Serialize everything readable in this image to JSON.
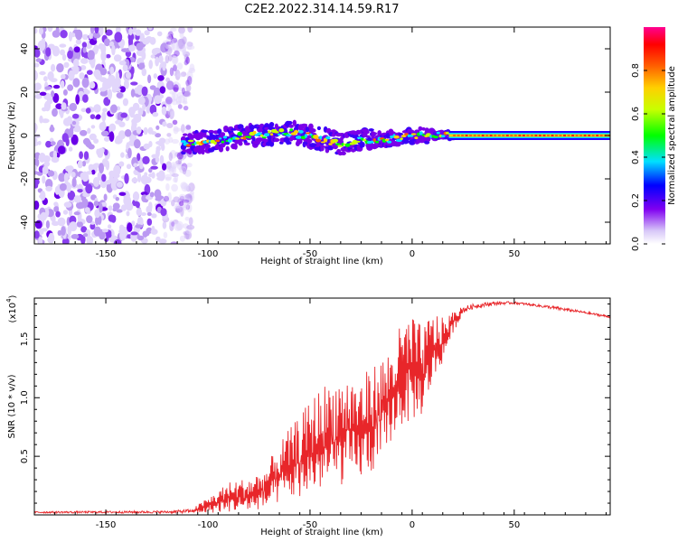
{
  "title": "C2E2.2022.314.14.59.R17",
  "chart_data": [
    {
      "type": "heatmap",
      "name": "spectrogram",
      "xlabel": "Height of straight line (km)",
      "ylabel": "Frequency (Hz)",
      "xlim": [
        -185,
        97
      ],
      "ylim": [
        -50,
        50
      ],
      "xticks": [
        -150,
        -100,
        -50,
        0,
        50
      ],
      "yticks": [
        -40,
        -20,
        0,
        20,
        40
      ],
      "description_regions": {
        "noise_region_x": [
          -185,
          -112
        ],
        "signal_trace": [
          {
            "x": -112,
            "f": -3.5
          },
          {
            "x": -100,
            "f": -2.5
          },
          {
            "x": -80,
            "f": 0.0
          },
          {
            "x": -60,
            "f": 1.5
          },
          {
            "x": -45,
            "f": -1.5
          },
          {
            "x": -35,
            "f": -3.5
          },
          {
            "x": -20,
            "f": -2.0
          },
          {
            "x": -10,
            "f": -1.5
          },
          {
            "x": 0,
            "f": 0.0
          },
          {
            "x": 10,
            "f": 0.0
          },
          {
            "x": 20,
            "f": 0.0
          },
          {
            "x": 97,
            "f": 0.0
          }
        ]
      },
      "colorbar": {
        "label": "Normalized spectral amplitude",
        "range": [
          0.0,
          1.0
        ],
        "ticks": [
          0.0,
          0.2,
          0.4,
          0.6,
          0.8
        ],
        "tick_labels": [
          "0.0",
          "0.2",
          "0.4",
          "0.6",
          "0.8"
        ],
        "colors": [
          "#ffffff",
          "#c0a0f0",
          "#8000f0",
          "#0000ff",
          "#00e0ff",
          "#00ff00",
          "#ffff00",
          "#ff8000",
          "#ff0000",
          "#ff00a0"
        ]
      }
    },
    {
      "type": "line",
      "name": "snr",
      "xlabel": "Height of straight line (km)",
      "ylabel": "SNR (10 * v/v)",
      "multiplier_label": "(x10",
      "multiplier_exp": "4",
      "multiplier_close": ")",
      "xlim": [
        -185,
        97
      ],
      "ylim": [
        0,
        18500
      ],
      "xticks": [
        -150,
        -100,
        -50,
        0,
        50
      ],
      "yticks": [
        5000,
        10000,
        15000
      ],
      "ytick_labels": [
        "0.5",
        "1.0",
        "1.5"
      ],
      "color": "#e8262a",
      "envelope": {
        "x": [
          -185,
          -120,
          -108,
          -100,
          -90,
          -80,
          -72,
          -65,
          -55,
          -45,
          -35,
          -25,
          -15,
          -10,
          -5,
          0,
          5,
          10,
          15,
          20,
          25,
          30,
          40,
          50,
          60,
          70,
          80,
          90,
          97
        ],
        "upper": [
          300,
          350,
          500,
          1500,
          2800,
          3200,
          4000,
          6200,
          8500,
          11000,
          12000,
          11800,
          13500,
          14500,
          16500,
          17200,
          16000,
          17500,
          16800,
          17400,
          17800,
          18000,
          18200,
          18200,
          18000,
          17800,
          17500,
          17200,
          17000
        ],
        "lower": [
          150,
          150,
          150,
          150,
          250,
          300,
          500,
          1000,
          1500,
          2000,
          2500,
          3000,
          4000,
          6500,
          7500,
          8000,
          8500,
          11000,
          13000,
          15500,
          17200,
          17600,
          17900,
          18000,
          17800,
          17500,
          17300,
          17000,
          16800
        ]
      }
    }
  ]
}
